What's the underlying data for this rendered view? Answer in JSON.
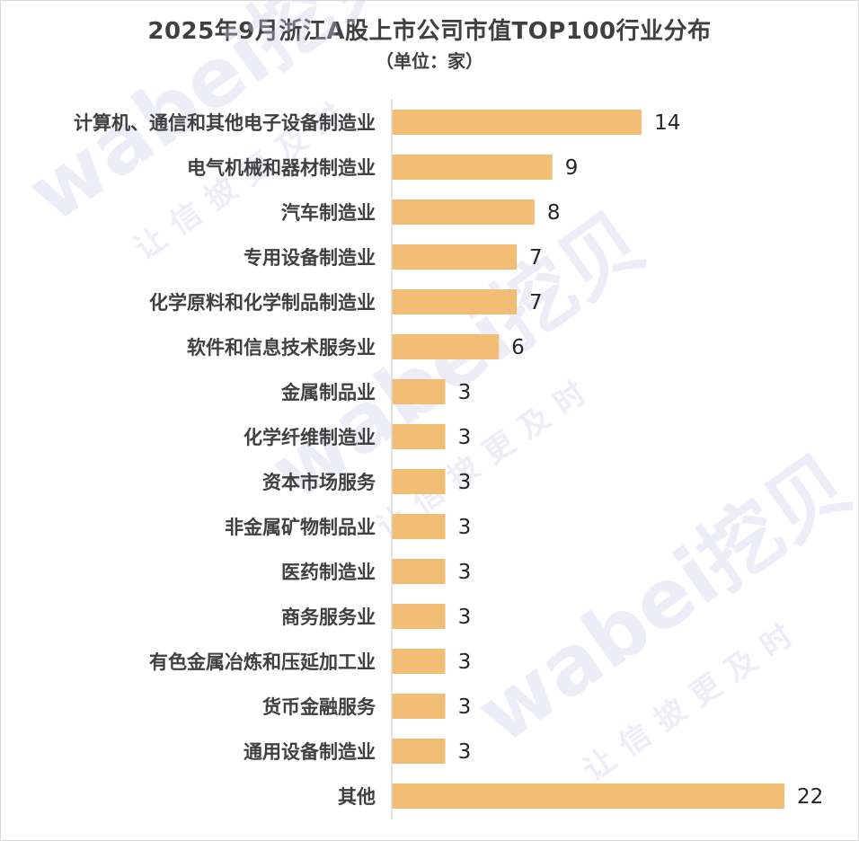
{
  "title": "2025年9月浙江A股上市公司市值TOP100行业分布",
  "subtitle": "（单位：家）",
  "watermark": {
    "brand": "wabei挖贝",
    "slogan": "让信披更及时"
  },
  "chart_data": {
    "type": "bar",
    "orientation": "horizontal",
    "categories": [
      "计算机、通信和其他电子设备制造业",
      "电气机械和器材制造业",
      "汽车制造业",
      "专用设备制造业",
      "化学原料和化学制品制造业",
      "软件和信息技术服务业",
      "金属制品业",
      "化学纤维制造业",
      "资本市场服务",
      "非金属矿物制品业",
      "医药制造业",
      "商务服务业",
      "有色金属冶炼和压延加工业",
      "货币金融服务",
      "通用设备制造业",
      "其他"
    ],
    "values": [
      14,
      9,
      8,
      7,
      7,
      6,
      3,
      3,
      3,
      3,
      3,
      3,
      3,
      3,
      3,
      22
    ],
    "xlim": [
      0,
      22
    ],
    "bar_color": "#f2bd74",
    "axis_color": "#d9d9d9",
    "grid": false,
    "legend": "none"
  }
}
